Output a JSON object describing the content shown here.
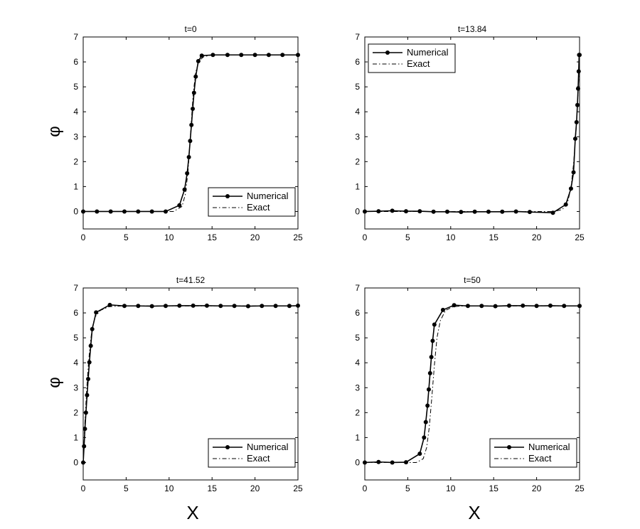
{
  "figure": {
    "xlabel": "X",
    "ylabel": "φ"
  },
  "chart_data": [
    {
      "type": "line",
      "title": "t=0",
      "xlabel": "",
      "ylabel": "φ",
      "xlim": [
        0,
        25
      ],
      "ylim": [
        -0.7,
        7
      ],
      "xticks": [
        0,
        5,
        10,
        15,
        20,
        25
      ],
      "yticks": [
        0,
        1,
        2,
        3,
        4,
        5,
        6,
        7
      ],
      "legend_position": "bottom-right",
      "series": [
        {
          "name": "Numerical",
          "style": "solid-with-dots",
          "x": [
            0,
            1.6,
            3.2,
            4.8,
            6.4,
            8.0,
            9.6,
            11.2,
            11.8,
            12.1,
            12.3,
            12.45,
            12.6,
            12.75,
            12.9,
            13.1,
            13.4,
            13.8,
            15.1,
            16.8,
            18.4,
            20.0,
            21.6,
            23.2,
            25
          ],
          "y": [
            0,
            0,
            0,
            0,
            0,
            0,
            0,
            0.25,
            0.88,
            1.53,
            2.18,
            2.83,
            3.47,
            4.12,
            4.76,
            5.41,
            6.03,
            6.25,
            6.28,
            6.28,
            6.28,
            6.28,
            6.28,
            6.28,
            6.28
          ]
        },
        {
          "name": "Exact",
          "style": "dash-dot",
          "x": [
            0,
            10.5,
            11.5,
            11.9,
            12.2,
            12.5,
            12.8,
            13.1,
            13.5,
            14.0,
            14.8,
            16.0,
            25
          ],
          "y": [
            0,
            0,
            0.2,
            0.7,
            1.6,
            3.14,
            4.7,
            5.6,
            6.05,
            6.2,
            6.27,
            6.28,
            6.28
          ]
        }
      ]
    },
    {
      "type": "line",
      "title": "t=13.84",
      "xlabel": "",
      "ylabel": "",
      "xlim": [
        0,
        25
      ],
      "ylim": [
        -0.7,
        7
      ],
      "xticks": [
        0,
        5,
        10,
        15,
        20,
        25
      ],
      "yticks": [
        0,
        1,
        2,
        3,
        4,
        5,
        6,
        7
      ],
      "legend_position": "top-left",
      "series": [
        {
          "name": "Numerical",
          "style": "solid-with-dots",
          "x": [
            0,
            1.6,
            3.2,
            4.8,
            6.4,
            8.0,
            9.6,
            11.2,
            12.8,
            14.4,
            16.0,
            17.6,
            19.2,
            21.9,
            23.4,
            24.0,
            24.3,
            24.5,
            24.65,
            24.75,
            24.83,
            24.9,
            24.95,
            25
          ],
          "y": [
            0,
            0.01,
            0.03,
            0.01,
            0.01,
            -0.01,
            -0.01,
            -0.02,
            -0.01,
            -0.01,
            -0.01,
            0.0,
            -0.02,
            -0.05,
            0.28,
            0.92,
            1.57,
            2.92,
            3.58,
            4.27,
            4.93,
            5.62,
            6.28,
            6.28
          ]
        },
        {
          "name": "Exact",
          "style": "dash-dot",
          "x": [
            0,
            22.0,
            23.0,
            23.6,
            24.0,
            24.3,
            24.55,
            24.75,
            24.9,
            25
          ],
          "y": [
            0,
            0,
            0.08,
            0.35,
            0.95,
            1.9,
            3.0,
            4.2,
            5.3,
            6.28
          ]
        }
      ]
    },
    {
      "type": "line",
      "title": "t=41.52",
      "xlabel": "X",
      "ylabel": "φ",
      "xlim": [
        0,
        25
      ],
      "ylim": [
        -0.7,
        7
      ],
      "xticks": [
        0,
        5,
        10,
        15,
        20,
        25
      ],
      "yticks": [
        0,
        1,
        2,
        3,
        4,
        5,
        6,
        7
      ],
      "legend_position": "bottom-right",
      "series": [
        {
          "name": "Numerical",
          "style": "solid-with-dots",
          "x": [
            0,
            0.1,
            0.2,
            0.32,
            0.45,
            0.58,
            0.72,
            0.88,
            1.05,
            1.5,
            3.1,
            4.8,
            6.4,
            8.0,
            9.6,
            11.2,
            12.8,
            14.4,
            16.0,
            17.6,
            19.2,
            20.8,
            22.4,
            24.0,
            25
          ],
          "y": [
            0,
            0.65,
            1.35,
            2.0,
            2.7,
            3.35,
            4.02,
            4.68,
            5.35,
            6.02,
            6.32,
            6.28,
            6.28,
            6.27,
            6.28,
            6.29,
            6.29,
            6.29,
            6.28,
            6.28,
            6.27,
            6.28,
            6.28,
            6.28,
            6.29
          ]
        },
        {
          "name": "Exact",
          "style": "dash-dot",
          "x": [
            0,
            0.2,
            0.4,
            0.6,
            0.8,
            1.05,
            1.4,
            2.0,
            3.0,
            4.5,
            25
          ],
          "y": [
            0,
            1.6,
            2.9,
            3.9,
            4.7,
            5.4,
            5.85,
            6.1,
            6.25,
            6.28,
            6.28
          ]
        }
      ]
    },
    {
      "type": "line",
      "title": "t=50",
      "xlabel": "X",
      "ylabel": "",
      "xlim": [
        0,
        25
      ],
      "ylim": [
        -0.7,
        7
      ],
      "xticks": [
        0,
        5,
        10,
        15,
        20,
        25
      ],
      "yticks": [
        0,
        1,
        2,
        3,
        4,
        5,
        6,
        7
      ],
      "legend_position": "bottom-right",
      "series": [
        {
          "name": "Numerical",
          "style": "solid-with-dots",
          "x": [
            0,
            1.6,
            3.2,
            4.8,
            6.4,
            6.9,
            7.1,
            7.3,
            7.45,
            7.6,
            7.75,
            7.9,
            8.1,
            9.1,
            10.4,
            12.0,
            13.6,
            15.2,
            16.8,
            18.4,
            20.0,
            21.6,
            23.2,
            25
          ],
          "y": [
            0,
            0.02,
            0.0,
            0.01,
            0.35,
            1.0,
            1.62,
            2.28,
            2.93,
            3.58,
            4.23,
            4.88,
            5.53,
            6.12,
            6.31,
            6.28,
            6.28,
            6.27,
            6.29,
            6.29,
            6.28,
            6.29,
            6.28,
            6.28
          ]
        },
        {
          "name": "Exact",
          "style": "dash-dot",
          "x": [
            0,
            6.0,
            6.8,
            7.2,
            7.5,
            7.8,
            8.1,
            8.4,
            8.8,
            9.4,
            10.3,
            11.5,
            25
          ],
          "y": [
            0,
            0,
            0.15,
            0.6,
            1.4,
            2.6,
            3.9,
            5.0,
            5.7,
            6.1,
            6.25,
            6.28,
            6.28
          ]
        }
      ]
    }
  ]
}
